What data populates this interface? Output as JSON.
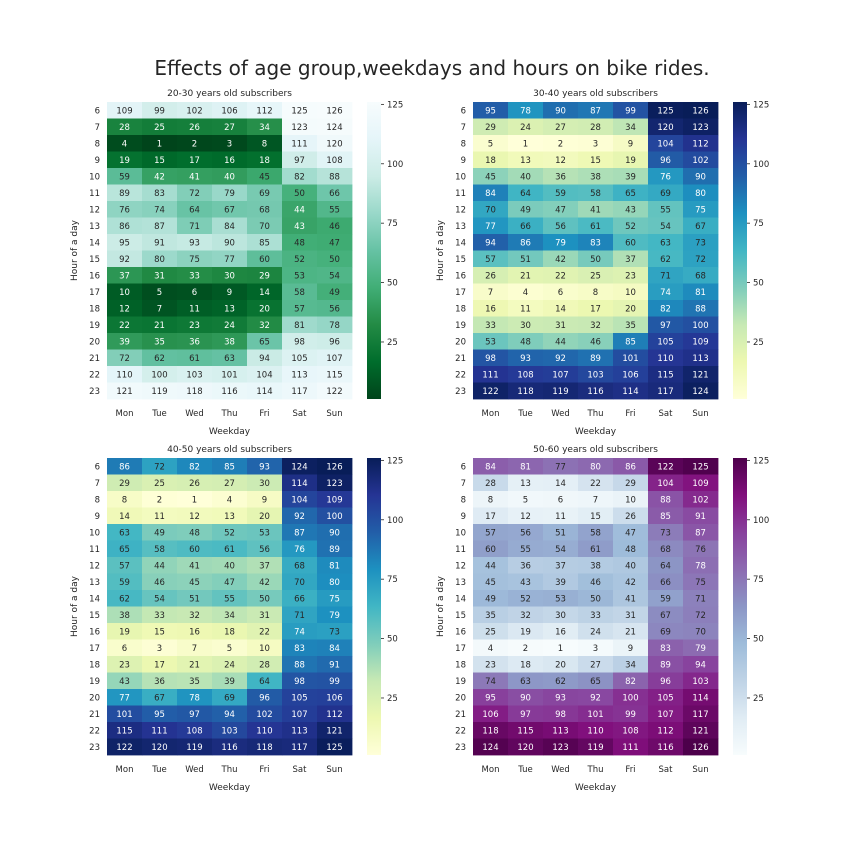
{
  "title": "Effects of age group,weekdays and hours on bike rides.",
  "chart_data": [
    {
      "type": "heatmap",
      "title": "20-30 years old subscribers",
      "xlabel": "Weekday",
      "ylabel": "Hour of a day",
      "x": [
        "Mon",
        "Tue",
        "Wed",
        "Thu",
        "Fri",
        "Sat",
        "Sun"
      ],
      "y": [
        6,
        7,
        8,
        9,
        10,
        11,
        12,
        13,
        14,
        15,
        16,
        17,
        18,
        19,
        20,
        21,
        22,
        23
      ],
      "values": [
        [
          109,
          99,
          102,
          106,
          112,
          125,
          126
        ],
        [
          28,
          25,
          26,
          27,
          34,
          123,
          124
        ],
        [
          4,
          1,
          2,
          3,
          8,
          111,
          120
        ],
        [
          19,
          15,
          17,
          16,
          18,
          97,
          108
        ],
        [
          59,
          42,
          41,
          40,
          45,
          82,
          88
        ],
        [
          89,
          83,
          72,
          79,
          69,
          50,
          66
        ],
        [
          76,
          74,
          64,
          67,
          68,
          44,
          55
        ],
        [
          86,
          87,
          71,
          84,
          70,
          43,
          46
        ],
        [
          95,
          91,
          93,
          90,
          85,
          48,
          47
        ],
        [
          92,
          80,
          75,
          77,
          60,
          52,
          50
        ],
        [
          37,
          31,
          33,
          30,
          29,
          53,
          54
        ],
        [
          10,
          5,
          6,
          9,
          14,
          58,
          49
        ],
        [
          12,
          7,
          11,
          13,
          20,
          57,
          56
        ],
        [
          22,
          21,
          23,
          24,
          32,
          81,
          78
        ],
        [
          39,
          35,
          36,
          38,
          65,
          98,
          96
        ],
        [
          72,
          62,
          61,
          63,
          94,
          105,
          107
        ],
        [
          110,
          100,
          103,
          101,
          104,
          113,
          115
        ],
        [
          121,
          119,
          118,
          116,
          114,
          117,
          122
        ]
      ],
      "colormap": [
        "#00441b",
        "#006d2c",
        "#238b45",
        "#41ae76",
        "#66c2a4",
        "#99d8c9",
        "#ccece6",
        "#e5f5f9",
        "#f7fcfd"
      ],
      "colorbar_ticks": [
        25,
        50,
        75,
        100,
        125
      ],
      "vmin": 1,
      "vmax": 126
    },
    {
      "type": "heatmap",
      "title": "30-40 years old subscribers",
      "xlabel": "Weekday",
      "ylabel": "Hour of a day",
      "x": [
        "Mon",
        "Tue",
        "Wed",
        "Thu",
        "Fri",
        "Sat",
        "Sun"
      ],
      "y": [
        6,
        7,
        8,
        9,
        10,
        11,
        12,
        13,
        14,
        15,
        16,
        17,
        18,
        19,
        20,
        21,
        22,
        23
      ],
      "values": [
        [
          95,
          78,
          90,
          87,
          99,
          125,
          126
        ],
        [
          29,
          24,
          27,
          28,
          34,
          120,
          123
        ],
        [
          5,
          1,
          2,
          3,
          9,
          104,
          112
        ],
        [
          18,
          13,
          12,
          15,
          19,
          96,
          102
        ],
        [
          45,
          40,
          36,
          38,
          39,
          76,
          90
        ],
        [
          84,
          64,
          59,
          58,
          65,
          69,
          80
        ],
        [
          70,
          49,
          47,
          41,
          43,
          55,
          75
        ],
        [
          77,
          66,
          56,
          61,
          52,
          54,
          67
        ],
        [
          94,
          86,
          79,
          83,
          60,
          63,
          73
        ],
        [
          57,
          51,
          42,
          50,
          37,
          62,
          72
        ],
        [
          26,
          21,
          22,
          25,
          23,
          71,
          68
        ],
        [
          7,
          4,
          6,
          8,
          10,
          74,
          81
        ],
        [
          16,
          11,
          14,
          17,
          20,
          82,
          88
        ],
        [
          33,
          30,
          31,
          32,
          35,
          97,
          100
        ],
        [
          53,
          48,
          44,
          46,
          85,
          105,
          109
        ],
        [
          98,
          93,
          92,
          89,
          101,
          110,
          113
        ],
        [
          111,
          108,
          107,
          103,
          106,
          115,
          121
        ],
        [
          122,
          118,
          119,
          116,
          114,
          117,
          124
        ]
      ],
      "colormap": [
        "#ffffd9",
        "#edf8b1",
        "#c7e9b4",
        "#7fcdbb",
        "#41b6c4",
        "#1d91c0",
        "#225ea8",
        "#253494",
        "#081d58"
      ],
      "colorbar_ticks": [
        25,
        50,
        75,
        100,
        125
      ],
      "vmin": 1,
      "vmax": 126
    },
    {
      "type": "heatmap",
      "title": "40-50 years old subscribers",
      "xlabel": "Weekday",
      "ylabel": "Hour of a day",
      "x": [
        "Mon",
        "Tue",
        "Wed",
        "Thu",
        "Fri",
        "Sat",
        "Sun"
      ],
      "y": [
        6,
        7,
        8,
        9,
        10,
        11,
        12,
        13,
        14,
        15,
        16,
        17,
        18,
        19,
        20,
        21,
        22,
        23
      ],
      "values": [
        [
          86,
          72,
          82,
          85,
          93,
          124,
          126
        ],
        [
          29,
          25,
          26,
          27,
          30,
          114,
          123
        ],
        [
          8,
          2,
          1,
          4,
          9,
          104,
          109
        ],
        [
          14,
          11,
          12,
          13,
          20,
          92,
          100
        ],
        [
          63,
          49,
          48,
          52,
          53,
          87,
          90
        ],
        [
          65,
          58,
          60,
          61,
          56,
          76,
          89
        ],
        [
          57,
          44,
          41,
          40,
          37,
          68,
          81
        ],
        [
          59,
          46,
          45,
          47,
          42,
          70,
          80
        ],
        [
          62,
          54,
          51,
          55,
          50,
          66,
          75
        ],
        [
          38,
          33,
          32,
          34,
          31,
          71,
          79
        ],
        [
          19,
          15,
          16,
          18,
          22,
          74,
          73
        ],
        [
          6,
          3,
          7,
          5,
          10,
          83,
          84
        ],
        [
          23,
          17,
          21,
          24,
          28,
          88,
          91
        ],
        [
          43,
          36,
          35,
          39,
          64,
          98,
          99
        ],
        [
          77,
          67,
          78,
          69,
          96,
          105,
          106
        ],
        [
          101,
          95,
          97,
          94,
          102,
          107,
          112
        ],
        [
          115,
          111,
          108,
          103,
          110,
          113,
          121
        ],
        [
          122,
          120,
          119,
          116,
          118,
          117,
          125
        ]
      ],
      "colormap": [
        "#ffffd9",
        "#edf8b1",
        "#c7e9b4",
        "#7fcdbb",
        "#41b6c4",
        "#1d91c0",
        "#225ea8",
        "#253494",
        "#081d58"
      ],
      "colorbar_ticks": [
        25,
        50,
        75,
        100,
        125
      ],
      "vmin": 1,
      "vmax": 126
    },
    {
      "type": "heatmap",
      "title": "50-60 years old subscribers",
      "xlabel": "Weekday",
      "ylabel": "Hour of a day",
      "x": [
        "Mon",
        "Tue",
        "Wed",
        "Thu",
        "Fri",
        "Sat",
        "Sun"
      ],
      "y": [
        6,
        7,
        8,
        9,
        10,
        11,
        12,
        13,
        14,
        15,
        16,
        17,
        18,
        19,
        20,
        21,
        22,
        23
      ],
      "values": [
        [
          84,
          81,
          77,
          80,
          86,
          122,
          125
        ],
        [
          28,
          13,
          14,
          22,
          29,
          104,
          109
        ],
        [
          8,
          5,
          6,
          7,
          10,
          88,
          102
        ],
        [
          17,
          12,
          11,
          15,
          26,
          85,
          91
        ],
        [
          57,
          56,
          51,
          58,
          47,
          73,
          87
        ],
        [
          60,
          55,
          54,
          61,
          48,
          68,
          76
        ],
        [
          44,
          36,
          37,
          38,
          40,
          64,
          78
        ],
        [
          45,
          43,
          39,
          46,
          42,
          66,
          75
        ],
        [
          49,
          52,
          53,
          50,
          41,
          59,
          71
        ],
        [
          35,
          32,
          30,
          33,
          31,
          67,
          72
        ],
        [
          25,
          19,
          16,
          24,
          21,
          69,
          70
        ],
        [
          4,
          2,
          1,
          3,
          9,
          83,
          79
        ],
        [
          23,
          18,
          20,
          27,
          34,
          89,
          94
        ],
        [
          74,
          63,
          62,
          65,
          82,
          96,
          103
        ],
        [
          95,
          90,
          93,
          92,
          100,
          105,
          114
        ],
        [
          106,
          97,
          98,
          101,
          99,
          107,
          117
        ],
        [
          118,
          115,
          113,
          110,
          108,
          112,
          121
        ],
        [
          124,
          120,
          123,
          119,
          111,
          116,
          126
        ]
      ],
      "colormap": [
        "#f7fcfd",
        "#e0ecf4",
        "#bfd3e6",
        "#9ebcda",
        "#8c96c6",
        "#8c6bb1",
        "#88419d",
        "#810f7c",
        "#4d004b"
      ],
      "colorbar_ticks": [
        25,
        50,
        75,
        100,
        125
      ],
      "vmin": 1,
      "vmax": 126
    }
  ]
}
